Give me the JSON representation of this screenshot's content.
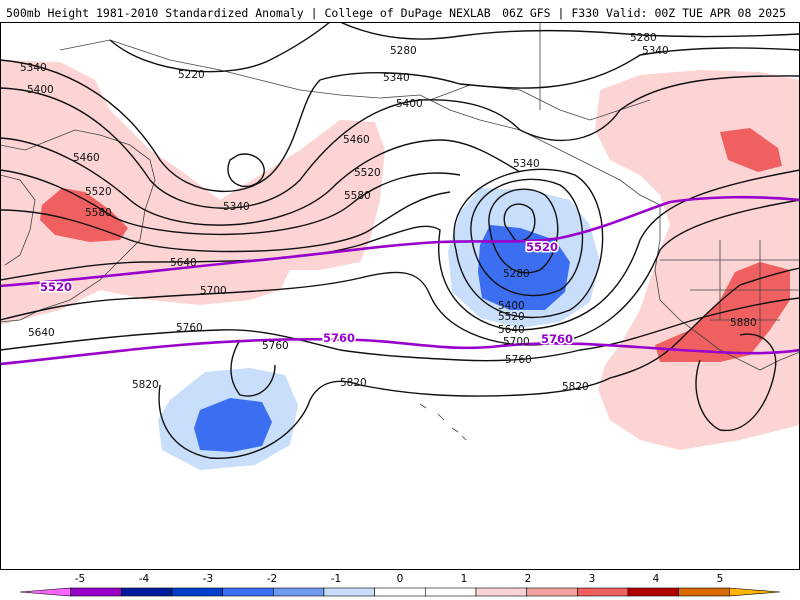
{
  "header": {
    "left_title": "500mb Height 1981-2010 Standardized Anomaly | College of DuPage NEXLAB",
    "right_title": "06Z GFS | F330 Valid: 00Z TUE APR 08 2025"
  },
  "contour_labels": [
    "5220",
    "5280",
    "5340",
    "5400",
    "5460",
    "5520",
    "5580",
    "5640",
    "5700",
    "5760",
    "5820",
    "5880"
  ],
  "highlighted_contours": [
    "5520",
    "5760"
  ],
  "colors": {
    "highlight": "#9900cc",
    "pos_light": "#fcd4d4",
    "pos_mid": "#f4a3a3",
    "pos_strong": "#f06060",
    "neg_light": "#c8defa",
    "neg_mid": "#6f9af2",
    "neg_strong": "#3b6ef0"
  },
  "legend": {
    "ticks": [
      "-5",
      "-4",
      "-3",
      "-2",
      "-1",
      "0",
      "1",
      "2",
      "3",
      "4",
      "5"
    ],
    "colors": [
      "#ff66ff",
      "#9900cc",
      "#001a99",
      "#0040cc",
      "#3b6ef0",
      "#6f9af2",
      "#c8defa",
      "#ffffff",
      "#ffffff",
      "#fcd4d4",
      "#f4a3a3",
      "#f06060",
      "#b30000",
      "#d96a00",
      "#ffb300"
    ]
  }
}
